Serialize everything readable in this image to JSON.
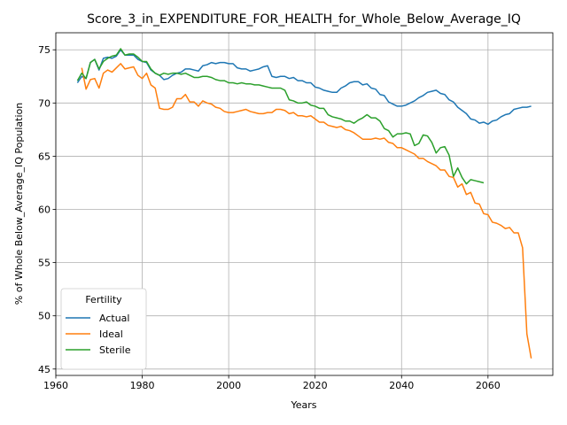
{
  "chart_data": {
    "type": "line",
    "title": "Score_3_in_EXPENDITURE_FOR_HEALTH_for_Whole_Below_Average_IQ",
    "xlabel": "Years",
    "ylabel": "% of Whole Below_Average_IQ Population",
    "xlim": [
      1960,
      2075
    ],
    "ylim": [
      44.4,
      76.6
    ],
    "xticks": [
      1960,
      1980,
      2000,
      2020,
      2040,
      2060
    ],
    "yticks": [
      45,
      50,
      55,
      60,
      65,
      70,
      75
    ],
    "grid": true,
    "legend": {
      "title": "Fertility",
      "placement": "lower-left"
    },
    "series": [
      {
        "name": "Actual",
        "color": "#1f77b4",
        "x": [
          1965,
          1966,
          1967,
          1968,
          1969,
          1970,
          1971,
          1972,
          1973,
          1974,
          1975,
          1976,
          1977,
          1978,
          1979,
          1980,
          1981,
          1982,
          1983,
          1984,
          1985,
          1986,
          1987,
          1988,
          1989,
          1990,
          1991,
          1992,
          1993,
          1994,
          1995,
          1996,
          1997,
          1998,
          1999,
          2000,
          2001,
          2002,
          2003,
          2004,
          2005,
          2006,
          2007,
          2008,
          2009,
          2010,
          2011,
          2012,
          2013,
          2014,
          2015,
          2016,
          2017,
          2018,
          2019,
          2020,
          2021,
          2022,
          2023,
          2024,
          2025,
          2026,
          2027,
          2028,
          2029,
          2030,
          2031,
          2032,
          2033,
          2034,
          2035,
          2036,
          2037,
          2038,
          2039,
          2040,
          2041,
          2042,
          2043,
          2044,
          2045,
          2046,
          2047,
          2048,
          2049,
          2050,
          2051,
          2052,
          2053,
          2054,
          2055,
          2056,
          2057,
          2058,
          2059,
          2060,
          2061,
          2062,
          2063,
          2064,
          2065,
          2066,
          2067,
          2068,
          2069,
          2070
        ],
        "y": [
          71.9,
          72.5,
          72.3,
          73.8,
          74.1,
          73.1,
          74.2,
          74.3,
          74.2,
          74.4,
          75.0,
          74.5,
          74.5,
          74.5,
          74.1,
          73.9,
          73.8,
          73.1,
          72.8,
          72.6,
          72.2,
          72.3,
          72.6,
          72.8,
          72.9,
          73.2,
          73.2,
          73.1,
          73.0,
          73.5,
          73.6,
          73.8,
          73.7,
          73.8,
          73.8,
          73.7,
          73.7,
          73.3,
          73.2,
          73.2,
          73.0,
          73.1,
          73.2,
          73.4,
          73.5,
          72.5,
          72.4,
          72.5,
          72.5,
          72.3,
          72.4,
          72.1,
          72.1,
          71.9,
          71.9,
          71.5,
          71.4,
          71.2,
          71.1,
          71.0,
          71.0,
          71.4,
          71.6,
          71.9,
          72.0,
          72.0,
          71.7,
          71.8,
          71.4,
          71.3,
          70.8,
          70.7,
          70.1,
          69.9,
          69.7,
          69.7,
          69.8,
          70.0,
          70.2,
          70.5,
          70.7,
          71.0,
          71.1,
          71.2,
          70.9,
          70.8,
          70.3,
          70.1,
          69.6,
          69.3,
          69.0,
          68.5,
          68.4,
          68.1,
          68.2,
          68.0,
          68.3,
          68.4,
          68.7,
          68.9,
          69.0,
          69.4,
          69.5,
          69.6,
          69.6,
          69.7
        ]
      },
      {
        "name": "Ideal",
        "color": "#ff7f0e",
        "x": [
          1966,
          1967,
          1968,
          1969,
          1970,
          1971,
          1972,
          1973,
          1974,
          1975,
          1976,
          1977,
          1978,
          1979,
          1980,
          1981,
          1982,
          1983,
          1984,
          1985,
          1986,
          1987,
          1988,
          1989,
          1990,
          1991,
          1992,
          1993,
          1994,
          1995,
          1996,
          1997,
          1998,
          1999,
          2000,
          2001,
          2002,
          2003,
          2004,
          2005,
          2006,
          2007,
          2008,
          2009,
          2010,
          2011,
          2012,
          2013,
          2014,
          2015,
          2016,
          2017,
          2018,
          2019,
          2020,
          2021,
          2022,
          2023,
          2024,
          2025,
          2026,
          2027,
          2028,
          2029,
          2030,
          2031,
          2032,
          2033,
          2034,
          2035,
          2036,
          2037,
          2038,
          2039,
          2040,
          2041,
          2042,
          2043,
          2044,
          2045,
          2046,
          2047,
          2048,
          2049,
          2050,
          2051,
          2052,
          2053,
          2054,
          2055,
          2056,
          2057,
          2058,
          2059,
          2060,
          2061,
          2062,
          2063,
          2064,
          2065,
          2066,
          2067,
          2068,
          2069,
          2070
        ],
        "y": [
          73.3,
          71.3,
          72.2,
          72.3,
          71.4,
          72.8,
          73.1,
          72.9,
          73.3,
          73.7,
          73.2,
          73.3,
          73.4,
          72.6,
          72.3,
          72.8,
          71.7,
          71.4,
          69.5,
          69.4,
          69.4,
          69.6,
          70.4,
          70.4,
          70.8,
          70.1,
          70.1,
          69.7,
          70.2,
          70.0,
          69.9,
          69.6,
          69.5,
          69.2,
          69.1,
          69.1,
          69.2,
          69.3,
          69.4,
          69.2,
          69.1,
          69.0,
          69.0,
          69.1,
          69.1,
          69.4,
          69.4,
          69.3,
          69.0,
          69.1,
          68.8,
          68.8,
          68.7,
          68.8,
          68.5,
          68.2,
          68.2,
          67.9,
          67.8,
          67.7,
          67.8,
          67.5,
          67.4,
          67.2,
          66.9,
          66.6,
          66.6,
          66.6,
          66.7,
          66.6,
          66.7,
          66.3,
          66.2,
          65.8,
          65.8,
          65.6,
          65.4,
          65.2,
          64.8,
          64.8,
          64.5,
          64.3,
          64.1,
          63.7,
          63.7,
          63.1,
          63.0,
          62.1,
          62.4,
          61.4,
          61.6,
          60.6,
          60.5,
          59.6,
          59.5,
          58.8,
          58.7,
          58.5,
          58.2,
          58.3,
          57.8,
          57.8,
          56.4,
          48.3,
          46.0
        ]
      },
      {
        "name": "Sterile",
        "color": "#2ca02c",
        "x": [
          1965,
          1966,
          1967,
          1968,
          1969,
          1970,
          1971,
          1972,
          1973,
          1974,
          1975,
          1976,
          1977,
          1978,
          1979,
          1980,
          1981,
          1982,
          1983,
          1984,
          1985,
          1986,
          1987,
          1988,
          1989,
          1990,
          1991,
          1992,
          1993,
          1994,
          1995,
          1996,
          1997,
          1998,
          1999,
          2000,
          2001,
          2002,
          2003,
          2004,
          2005,
          2006,
          2007,
          2008,
          2009,
          2010,
          2011,
          2012,
          2013,
          2014,
          2015,
          2016,
          2017,
          2018,
          2019,
          2020,
          2021,
          2022,
          2023,
          2024,
          2025,
          2026,
          2027,
          2028,
          2029,
          2030,
          2031,
          2032,
          2033,
          2034,
          2035,
          2036,
          2037,
          2038,
          2039,
          2040,
          2041,
          2042,
          2043,
          2044,
          2045,
          2046,
          2047,
          2048,
          2049,
          2050,
          2051,
          2052,
          2053,
          2054,
          2055,
          2056,
          2057,
          2058,
          2059
        ],
        "y": [
          72.1,
          72.8,
          72.3,
          73.8,
          74.1,
          73.2,
          73.9,
          74.2,
          74.4,
          74.5,
          75.1,
          74.5,
          74.6,
          74.6,
          74.3,
          73.9,
          73.9,
          73.2,
          72.8,
          72.6,
          72.8,
          72.7,
          72.8,
          72.8,
          72.7,
          72.8,
          72.6,
          72.4,
          72.4,
          72.5,
          72.5,
          72.4,
          72.2,
          72.1,
          72.1,
          71.9,
          71.9,
          71.8,
          71.9,
          71.8,
          71.8,
          71.7,
          71.7,
          71.6,
          71.5,
          71.4,
          71.4,
          71.4,
          71.2,
          70.3,
          70.2,
          70.0,
          70.0,
          70.1,
          69.8,
          69.7,
          69.5,
          69.5,
          68.9,
          68.7,
          68.6,
          68.5,
          68.3,
          68.3,
          68.1,
          68.4,
          68.6,
          68.9,
          68.6,
          68.6,
          68.3,
          67.6,
          67.4,
          66.8,
          67.1,
          67.1,
          67.2,
          67.1,
          66.0,
          66.2,
          67.0,
          66.9,
          66.3,
          65.3,
          65.8,
          65.9,
          65.1,
          63.1,
          63.9,
          63.0,
          62.4,
          62.8,
          62.7,
          62.6,
          62.5
        ]
      }
    ]
  }
}
